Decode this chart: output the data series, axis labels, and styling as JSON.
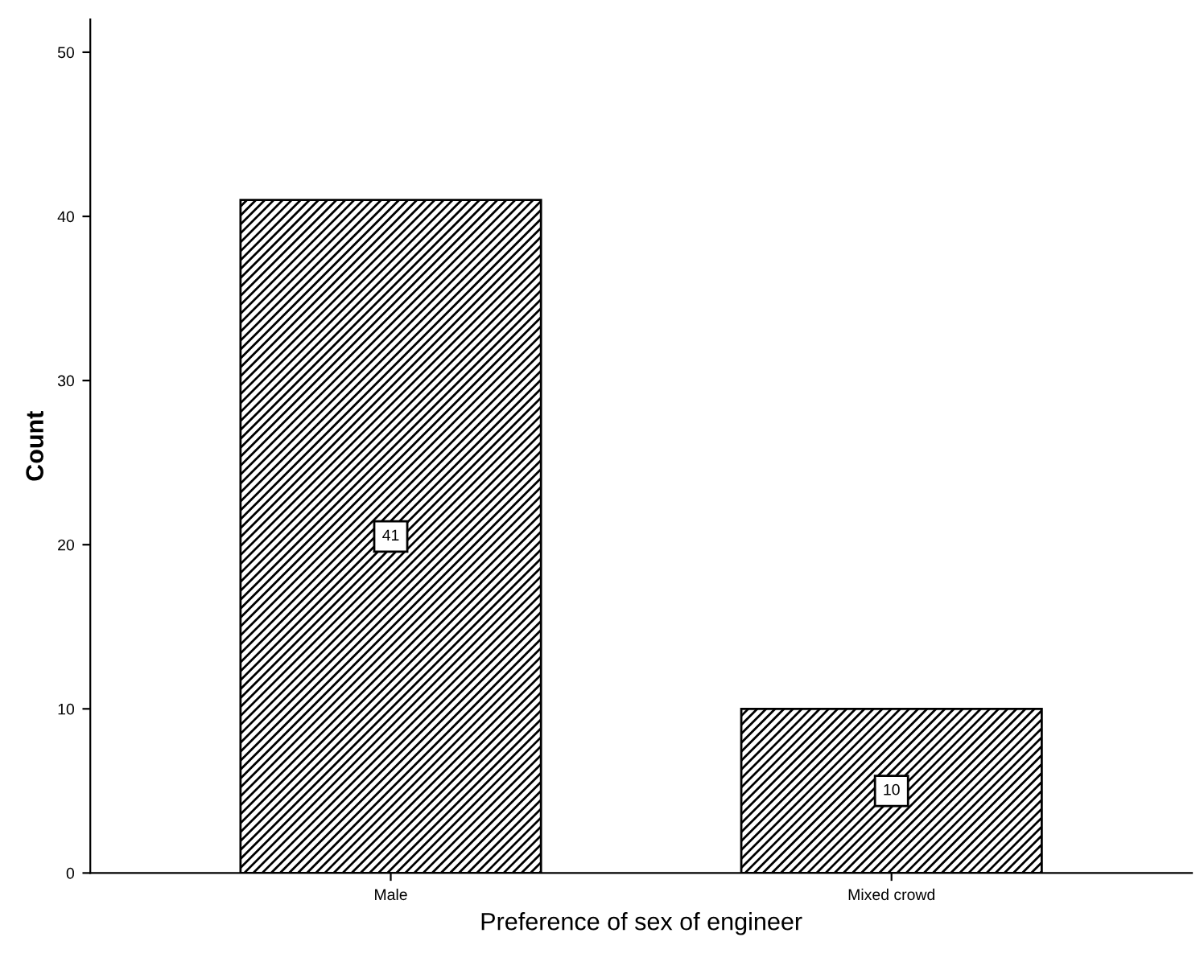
{
  "chart_data": {
    "type": "bar",
    "xlabel": "Preference of sex of engineer",
    "ylabel": "Count",
    "categories": [
      "Male",
      "Mixed crowd"
    ],
    "values": [
      41,
      10
    ],
    "color": "#000000",
    "ylim": [
      0,
      52
    ],
    "yticks": [
      0,
      10,
      20,
      30,
      40,
      50
    ],
    "grid": false,
    "data_labels": true
  }
}
